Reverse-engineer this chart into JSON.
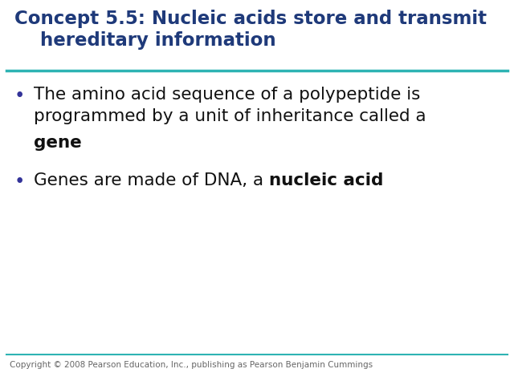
{
  "title_line1": "Concept 5.5: Nucleic acids store and transmit",
  "title_line2": "    hereditary information",
  "title_color": "#1F3A7A",
  "title_fontsize": 16.5,
  "separator_color": "#2EB3B3",
  "separator_linewidth": 2.5,
  "background_color": "#FFFFFF",
  "bullet_color": "#333399",
  "body_fontsize": 15.5,
  "bullet1_text": "The amino acid sequence of a polypeptide is\nprogrammed by a unit of inheritance called a",
  "bullet1_bold": "gene",
  "bullet2_normal": "Genes are made of DNA, a ",
  "bullet2_bold": "nucleic acid",
  "copyright_text": "Copyright © 2008 Pearson Education, Inc., publishing as Pearson Benjamin Cummings",
  "copyright_fontsize": 7.5,
  "copyright_color": "#666666",
  "footer_line_color": "#2EB3B3"
}
